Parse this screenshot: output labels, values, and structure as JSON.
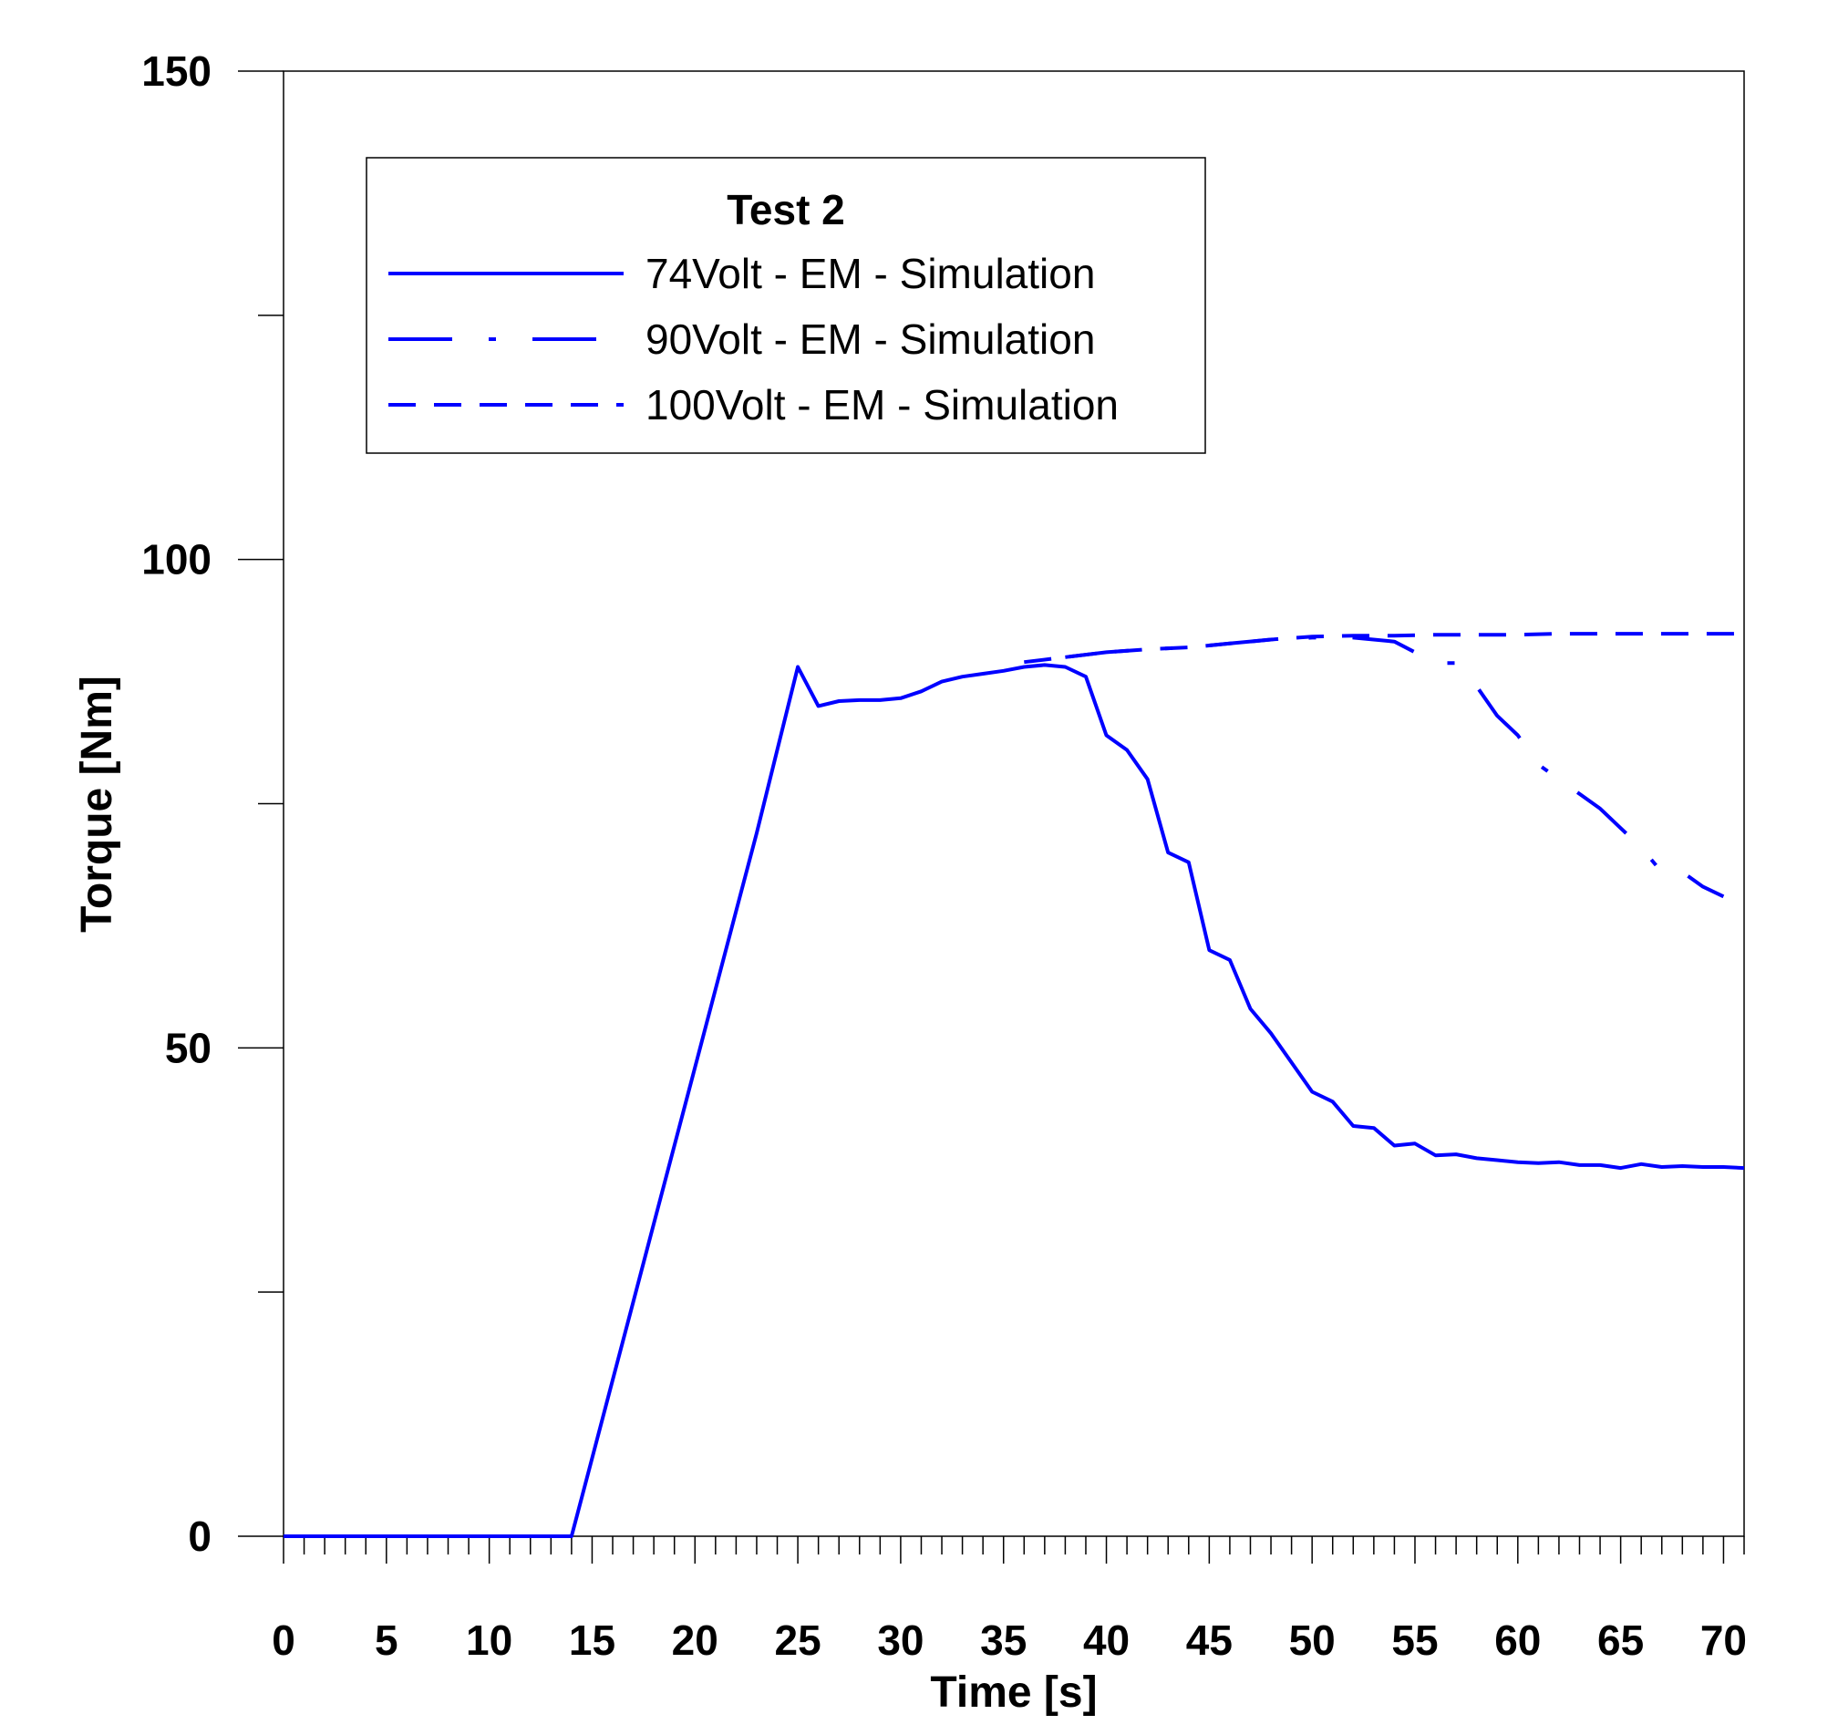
{
  "chart_data": {
    "type": "line",
    "xlabel": "Time [s]",
    "ylabel": "Torque [Nm]",
    "xlim": [
      0,
      71
    ],
    "ylim": [
      0,
      150
    ],
    "x_ticks": [
      0,
      5,
      10,
      15,
      20,
      25,
      30,
      35,
      40,
      45,
      50,
      55,
      60,
      65,
      70
    ],
    "y_ticks": [
      0,
      50,
      100,
      150
    ],
    "grid": false,
    "legend": {
      "title": "Test 2",
      "position": "top-left"
    },
    "line_color": "#0000ff",
    "series": [
      {
        "name": "74Volt - EM - Simulation",
        "style": "solid",
        "x": [
          0,
          14,
          15,
          16,
          17,
          18,
          19,
          20,
          21,
          22,
          23,
          24,
          25,
          26,
          27,
          28,
          29,
          30,
          31,
          32,
          33,
          34,
          35,
          36,
          37,
          38,
          39,
          40,
          41,
          42,
          43,
          44,
          45,
          46,
          47,
          48,
          49,
          50,
          51,
          52,
          53,
          54,
          55,
          56,
          57,
          58,
          59,
          60,
          61,
          62,
          63,
          64,
          65,
          66,
          67,
          68,
          69,
          70,
          71
        ],
        "y": [
          0,
          0,
          8,
          16,
          24,
          32,
          40,
          48,
          56,
          64,
          72,
          80.5,
          89,
          85,
          85.5,
          85.6,
          85.6,
          85.8,
          86.5,
          87.5,
          88,
          88.3,
          88.6,
          89,
          89.2,
          89,
          88,
          82,
          80.5,
          77.5,
          70,
          69,
          60,
          59,
          54,
          51.5,
          48.5,
          45.5,
          44.5,
          42,
          41.8,
          40,
          40.2,
          39,
          39.1,
          38.7,
          38.5,
          38.3,
          38.2,
          38.3,
          38,
          38,
          37.7,
          38.1,
          37.8,
          37.9,
          37.8,
          37.8,
          37.7
        ]
      },
      {
        "name": "90Volt - EM - Simulation",
        "style": "dash-dot",
        "x": [
          38,
          40,
          42,
          44,
          46,
          48,
          50,
          52,
          54,
          55,
          56,
          57,
          58,
          59,
          60,
          61,
          62,
          63,
          64,
          65,
          66,
          67,
          68,
          69,
          70
        ],
        "y": [
          90,
          90.5,
          90.8,
          91,
          91.4,
          91.8,
          92,
          92,
          91.6,
          90.5,
          89.4,
          89.4,
          87,
          84,
          82,
          79,
          77.5,
          76,
          74.5,
          72.5,
          70.5,
          68,
          68,
          66.5,
          65.5
        ]
      },
      {
        "name": "100Volt - EM - Simulation",
        "style": "dashed",
        "x": [
          36,
          38,
          40,
          42,
          44,
          46,
          48,
          50,
          52,
          54,
          56,
          58,
          60,
          62,
          64,
          66,
          68,
          70,
          71
        ],
        "y": [
          89.5,
          90,
          90.5,
          90.8,
          91,
          91.4,
          91.8,
          92.1,
          92.2,
          92.2,
          92.3,
          92.3,
          92.3,
          92.4,
          92.4,
          92.4,
          92.4,
          92.4,
          92.4
        ]
      }
    ]
  }
}
